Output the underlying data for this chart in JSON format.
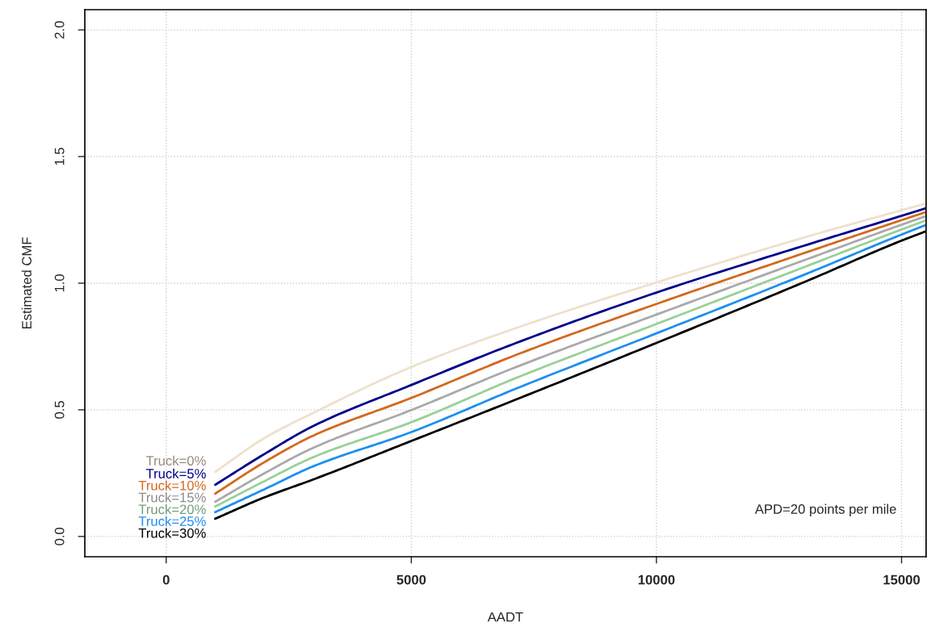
{
  "chart_data": {
    "type": "line",
    "xlabel": "AADT",
    "ylabel": "Estimated CMF",
    "x": [
      1000,
      2000,
      3000,
      5000,
      7140,
      10000,
      13060,
      15000,
      15500
    ],
    "series": [
      {
        "name": "Truck=0%",
        "color": "#eee0cc",
        "values": [
          0.255,
          0.388,
          0.488,
          0.669,
          0.823,
          1.003,
          1.183,
          1.288,
          1.315
        ]
      },
      {
        "name": "Truck=5%",
        "color": "#00008b",
        "values": [
          0.204,
          0.325,
          0.436,
          0.598,
          0.764,
          0.963,
          1.151,
          1.266,
          1.296
        ]
      },
      {
        "name": "Truck=10%",
        "color": "#d2691e",
        "values": [
          0.169,
          0.293,
          0.398,
          0.547,
          0.717,
          0.918,
          1.122,
          1.249,
          1.281
        ]
      },
      {
        "name": "Truck=15%",
        "color": "#a9a9a9",
        "values": [
          0.137,
          0.249,
          0.35,
          0.499,
          0.669,
          0.876,
          1.094,
          1.231,
          1.265
        ]
      },
      {
        "name": "Truck=20%",
        "color": "#98d098",
        "values": [
          0.118,
          0.218,
          0.313,
          0.451,
          0.626,
          0.839,
          1.067,
          1.212,
          1.248
        ]
      },
      {
        "name": "Truck=25%",
        "color": "#1e8ff0",
        "values": [
          0.096,
          0.186,
          0.277,
          0.412,
          0.584,
          0.802,
          1.037,
          1.192,
          1.23
        ]
      },
      {
        "name": "Truck=30%",
        "color": "#000000",
        "values": [
          0.07,
          0.154,
          0.225,
          0.377,
          0.541,
          0.764,
          1.008,
          1.168,
          1.205
        ]
      }
    ],
    "xlim": [
      -1660,
      15500
    ],
    "ylim": [
      -0.08,
      2.08
    ],
    "xticks": [
      0,
      5000,
      10000,
      15000
    ],
    "yticks": [
      {
        "value": 0,
        "label": "0.0"
      },
      0.5,
      {
        "value": 1,
        "label": "1.0"
      },
      1.5,
      {
        "value": 2,
        "label": "2.0"
      }
    ],
    "grid": true,
    "line_style": "solid",
    "annotations": [
      "APD=20 points per mile"
    ]
  }
}
